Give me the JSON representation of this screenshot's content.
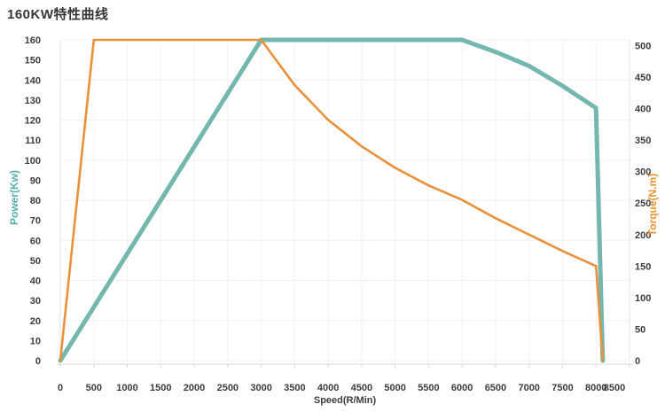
{
  "page": {
    "title": "160KW特性曲线"
  },
  "chart_data": {
    "type": "line",
    "title": "160KW特性曲线",
    "xlabel": "Speed(R/Min)",
    "legend": "none",
    "grid": true,
    "x": [
      0,
      500,
      1000,
      1500,
      2000,
      2500,
      3000,
      3500,
      4000,
      4500,
      5000,
      5500,
      6000,
      6500,
      7000,
      7500,
      8000,
      8100
    ],
    "x_ticks": [
      0,
      500,
      1000,
      1500,
      2000,
      2500,
      3000,
      3500,
      4000,
      4500,
      5000,
      5500,
      6000,
      6500,
      7000,
      7500,
      8000,
      8500
    ],
    "xlim": [
      0,
      8500
    ],
    "axes": {
      "left": {
        "label": "Power(Kw)",
        "color": "#55b1a7",
        "lim": [
          0,
          160
        ],
        "ticks": [
          0,
          10,
          20,
          30,
          40,
          50,
          60,
          70,
          80,
          90,
          100,
          110,
          120,
          130,
          140,
          150,
          160
        ],
        "grid_step": 20
      },
      "right": {
        "label": "Torque(N.m)",
        "color": "#ef9234",
        "lim": [
          0,
          509
        ],
        "ticks": [
          0,
          50,
          100,
          150,
          200,
          250,
          300,
          350,
          400,
          450,
          500
        ]
      }
    },
    "series": [
      {
        "name": "Power",
        "axis": "left",
        "color": "#73b7af",
        "width": 5,
        "values": [
          0,
          26.7,
          53.3,
          80,
          106.7,
          133.3,
          160,
          160,
          160,
          160,
          160,
          160,
          160,
          154,
          147,
          137,
          126,
          0
        ]
      },
      {
        "name": "Torque",
        "axis": "right",
        "color": "#e8913a",
        "width": 2.6,
        "values": [
          0,
          509,
          509,
          509,
          509,
          509,
          509,
          437,
          382,
          340,
          306,
          278,
          255,
          226,
          200,
          174,
          150,
          0
        ]
      }
    ]
  }
}
